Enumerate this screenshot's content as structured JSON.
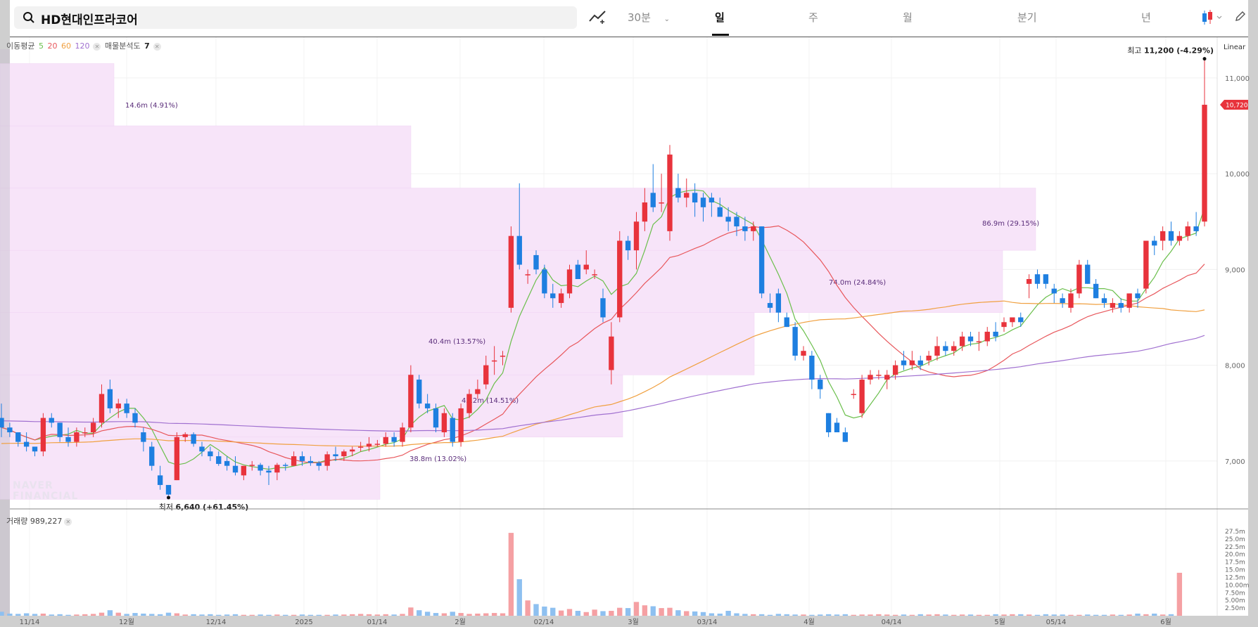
{
  "search": {
    "value": "HD현대인프라코어"
  },
  "toolbar": {
    "interval_label": "30분",
    "periods": [
      "일",
      "주",
      "월",
      "분기",
      "년"
    ],
    "active_period": "일"
  },
  "legend": {
    "ma_label": "이동평균",
    "ma_periods": [
      "5",
      "20",
      "60",
      "120"
    ],
    "ma_colors": [
      "#6abf4b",
      "#e8575c",
      "#f0a040",
      "#a070d0"
    ],
    "vp_label": "매물분석도",
    "vp_value": "7"
  },
  "scale_mode": "Linear",
  "high_marker": {
    "prefix": "최고",
    "value": "11,200",
    "change": "(-4.29%)"
  },
  "low_marker": {
    "prefix": "최저",
    "value": "6,640",
    "change": "(+61.45%)"
  },
  "current_price_label": "10,720",
  "volume_legend": {
    "label": "거래량",
    "value": "989,227"
  },
  "watermark": [
    "NAVER",
    "FINANCIAL"
  ],
  "colors": {
    "up": "#e8333c",
    "down": "#1e7fe0",
    "vp_fill": "#f7e4f9"
  },
  "chart_data": {
    "type": "candlestick",
    "y_axis": {
      "min": 6500,
      "max": 11300,
      "ticks": [
        7000,
        8000,
        9000,
        10000,
        11000
      ],
      "tick_labels": [
        "7,000",
        "8,000",
        "9,000",
        "10,000",
        "11,000"
      ]
    },
    "x_axis_labels": [
      "11/14",
      "12월",
      "12/14",
      "2025",
      "01/14",
      "2월",
      "02/14",
      "3월",
      "03/14",
      "4월",
      "04/14",
      "5월",
      "05/14",
      "6월"
    ],
    "volume_axis": {
      "tick_labels": [
        "27.5m",
        "25.0m",
        "22.5m",
        "20.0m",
        "17.5m",
        "15.0m",
        "12.5m",
        "10.00m",
        "7.50m",
        "5.00m",
        "2.50m"
      ]
    },
    "volume_profile": [
      {
        "low": 6600,
        "high": 7250,
        "label": "38.8m (13.02%)"
      },
      {
        "low": 7250,
        "high": 7900,
        "label": "43.2m (14.51%)"
      },
      {
        "low": 7900,
        "high": 8550,
        "label": "40.4m (13.57%)"
      },
      {
        "low": 8550,
        "high": 9200,
        "label": "74.0m (24.84%)"
      },
      {
        "low": 9200,
        "high": 9850,
        "label": "86.9m (29.15%)"
      },
      {
        "low": 9850,
        "high": 10500,
        "label": ""
      },
      {
        "low": 10500,
        "high": 11150,
        "label": "14.6m (4.91%)"
      }
    ],
    "candles": [
      [
        7450,
        7600,
        7250,
        7350
      ],
      [
        7350,
        7400,
        7250,
        7300
      ],
      [
        7300,
        7300,
        7150,
        7200
      ],
      [
        7200,
        7300,
        7100,
        7150
      ],
      [
        7150,
        7150,
        7050,
        7100
      ],
      [
        7100,
        7500,
        7050,
        7450
      ],
      [
        7450,
        7500,
        7350,
        7400
      ],
      [
        7400,
        7400,
        7200,
        7250
      ],
      [
        7250,
        7350,
        7150,
        7200
      ],
      [
        7200,
        7350,
        7150,
        7300
      ],
      [
        7300,
        7350,
        7250,
        7300
      ],
      [
        7300,
        7450,
        7250,
        7400
      ],
      [
        7400,
        7800,
        7350,
        7700
      ],
      [
        7750,
        7850,
        7500,
        7550
      ],
      [
        7550,
        7650,
        7450,
        7600
      ],
      [
        7600,
        7650,
        7450,
        7500
      ],
      [
        7500,
        7550,
        7350,
        7400
      ],
      [
        7300,
        7350,
        7100,
        7200
      ],
      [
        7150,
        7200,
        6900,
        6950
      ],
      [
        6850,
        6950,
        6700,
        6750
      ],
      [
        6750,
        6750,
        6640,
        6650
      ],
      [
        6800,
        7300,
        6800,
        7250
      ],
      [
        7250,
        7300,
        7200,
        7280
      ],
      [
        7280,
        7300,
        7150,
        7180
      ],
      [
        7150,
        7200,
        7050,
        7100
      ],
      [
        7100,
        7150,
        7000,
        7050
      ],
      [
        7050,
        7100,
        6950,
        6970
      ],
      [
        7000,
        7050,
        6900,
        6950
      ],
      [
        6950,
        7050,
        6850,
        6880
      ],
      [
        6850,
        6950,
        6800,
        6950
      ],
      [
        6950,
        7000,
        6900,
        6960
      ],
      [
        6960,
        6980,
        6850,
        6900
      ],
      [
        6900,
        6950,
        6750,
        6880
      ],
      [
        6880,
        6980,
        6800,
        6960
      ],
      [
        6960,
        6980,
        6900,
        6950
      ],
      [
        6950,
        7100,
        6950,
        7050
      ],
      [
        7050,
        7100,
        6950,
        7000
      ],
      [
        7000,
        7050,
        6950,
        6980
      ],
      [
        6980,
        7000,
        6900,
        6950
      ],
      [
        6950,
        7100,
        6900,
        7070
      ],
      [
        7070,
        7150,
        7000,
        7050
      ],
      [
        7050,
        7120,
        7000,
        7100
      ],
      [
        7100,
        7150,
        7050,
        7120
      ],
      [
        7150,
        7200,
        7100,
        7150
      ],
      [
        7150,
        7250,
        7100,
        7180
      ],
      [
        7180,
        7220,
        7150,
        7180
      ],
      [
        7180,
        7300,
        7150,
        7250
      ],
      [
        7250,
        7300,
        7150,
        7200
      ],
      [
        7200,
        7400,
        7150,
        7350
      ],
      [
        7350,
        8000,
        7300,
        7900
      ],
      [
        7850,
        7900,
        7550,
        7600
      ],
      [
        7600,
        7700,
        7500,
        7550
      ],
      [
        7550,
        7600,
        7300,
        7350
      ],
      [
        7300,
        7550,
        7250,
        7500
      ],
      [
        7450,
        7500,
        7150,
        7200
      ],
      [
        7200,
        7600,
        7150,
        7550
      ],
      [
        7500,
        7750,
        7450,
        7700
      ],
      [
        7700,
        7850,
        7650,
        7750
      ],
      [
        7800,
        8100,
        7750,
        8000
      ],
      [
        8050,
        8200,
        7900,
        8050
      ],
      [
        8100,
        8150,
        8000,
        8100
      ],
      [
        8600,
        9450,
        8550,
        9350
      ],
      [
        9350,
        9900,
        9000,
        9050
      ],
      [
        8950,
        9000,
        8850,
        8950
      ],
      [
        9150,
        9200,
        8950,
        9000
      ],
      [
        9000,
        9050,
        8700,
        8750
      ],
      [
        8750,
        8850,
        8600,
        8700
      ],
      [
        8650,
        8800,
        8600,
        8750
      ],
      [
        8750,
        9050,
        8700,
        9000
      ],
      [
        9050,
        9100,
        8900,
        8900
      ],
      [
        9000,
        9200,
        8950,
        9050
      ],
      [
        8950,
        9000,
        8900,
        8950
      ],
      [
        8700,
        8800,
        8450,
        8500
      ],
      [
        7950,
        8450,
        7800,
        8300
      ],
      [
        8500,
        9400,
        8450,
        9300
      ],
      [
        9300,
        9350,
        9100,
        9200
      ],
      [
        9200,
        9600,
        9000,
        9500
      ],
      [
        9500,
        9850,
        9400,
        9700
      ],
      [
        9800,
        10100,
        9600,
        9650
      ],
      [
        9700,
        10000,
        9600,
        9700
      ],
      [
        9400,
        10300,
        9300,
        10200
      ],
      [
        9850,
        10000,
        9700,
        9750
      ],
      [
        9750,
        9950,
        9650,
        9800
      ],
      [
        9800,
        9900,
        9550,
        9700
      ],
      [
        9750,
        9800,
        9500,
        9650
      ],
      [
        9750,
        9800,
        9550,
        9700
      ],
      [
        9650,
        9750,
        9550,
        9550
      ],
      [
        9550,
        9650,
        9400,
        9500
      ],
      [
        9550,
        9600,
        9350,
        9450
      ],
      [
        9450,
        9550,
        9300,
        9400
      ],
      [
        9400,
        9500,
        9300,
        9450
      ],
      [
        9450,
        9450,
        8700,
        8750
      ],
      [
        8650,
        8750,
        8550,
        8600
      ],
      [
        8750,
        8800,
        8450,
        8550
      ],
      [
        8500,
        8550,
        8400,
        8400
      ],
      [
        8400,
        8450,
        8050,
        8100
      ],
      [
        8100,
        8200,
        8050,
        8150
      ],
      [
        8100,
        8150,
        7750,
        7850
      ],
      [
        7850,
        7900,
        7650,
        7750
      ],
      [
        7500,
        7500,
        7250,
        7300
      ],
      [
        7400,
        7450,
        7300,
        7300
      ],
      [
        7300,
        7350,
        7200,
        7200
      ],
      [
        7700,
        7750,
        7650,
        7700
      ],
      [
        7500,
        7900,
        7450,
        7850
      ],
      [
        7850,
        7950,
        7800,
        7900
      ],
      [
        7900,
        7950,
        7850,
        7900
      ],
      [
        7850,
        7950,
        7750,
        7900
      ],
      [
        7900,
        8050,
        7850,
        8000
      ],
      [
        8050,
        8150,
        7950,
        8000
      ],
      [
        8000,
        8150,
        7950,
        8050
      ],
      [
        8050,
        8100,
        7950,
        8000
      ],
      [
        8050,
        8150,
        8000,
        8100
      ],
      [
        8100,
        8300,
        8050,
        8200
      ],
      [
        8200,
        8250,
        8100,
        8150
      ],
      [
        8150,
        8250,
        8100,
        8200
      ],
      [
        8200,
        8350,
        8150,
        8300
      ],
      [
        8300,
        8350,
        8200,
        8250
      ],
      [
        8250,
        8350,
        8150,
        8250
      ],
      [
        8250,
        8400,
        8200,
        8350
      ],
      [
        8350,
        8450,
        8250,
        8300
      ],
      [
        8400,
        8500,
        8350,
        8450
      ],
      [
        8450,
        8500,
        8400,
        8500
      ],
      [
        8500,
        8550,
        8400,
        8450
      ],
      [
        8850,
        8950,
        8700,
        8900
      ],
      [
        8950,
        9000,
        8800,
        8850
      ],
      [
        8950,
        8950,
        8800,
        8850
      ],
      [
        8800,
        8850,
        8650,
        8750
      ],
      [
        8700,
        8750,
        8600,
        8650
      ],
      [
        8600,
        8800,
        8550,
        8750
      ],
      [
        8750,
        9100,
        8700,
        9050
      ],
      [
        9050,
        9100,
        8850,
        8850
      ],
      [
        8850,
        8900,
        8700,
        8700
      ],
      [
        8700,
        8750,
        8600,
        8650
      ],
      [
        8600,
        8700,
        8550,
        8650
      ],
      [
        8650,
        8700,
        8550,
        8600
      ],
      [
        8600,
        8750,
        8550,
        8750
      ],
      [
        8750,
        8800,
        8600,
        8700
      ],
      [
        8800,
        9300,
        8750,
        9300
      ],
      [
        9300,
        9350,
        9150,
        9250
      ],
      [
        9300,
        9450,
        9200,
        9400
      ],
      [
        9400,
        9500,
        9250,
        9300
      ],
      [
        9300,
        9400,
        9250,
        9350
      ],
      [
        9350,
        9500,
        9300,
        9450
      ],
      [
        9450,
        9600,
        9350,
        9400
      ],
      [
        9500,
        11200,
        9450,
        10720
      ]
    ],
    "volumes": [
      1.3,
      0.7,
      0.6,
      0.8,
      0.6,
      0.7,
      0.4,
      0.5,
      0.3,
      0.4,
      0.5,
      0.6,
      1.0,
      1.8,
      1.0,
      0.6,
      0.9,
      0.7,
      0.6,
      0.5,
      1.0,
      0.8,
      0.4,
      0.5,
      0.4,
      0.5,
      0.3,
      0.4,
      0.5,
      0.3,
      0.3,
      0.4,
      0.3,
      0.4,
      0.3,
      0.3,
      0.4,
      0.3,
      0.3,
      0.3,
      0.4,
      0.4,
      0.5,
      0.6,
      0.5,
      0.4,
      0.5,
      0.4,
      0.6,
      2.7,
      1.8,
      1.3,
      0.9,
      0.8,
      1.3,
      0.9,
      0.6,
      0.7,
      0.8,
      0.9,
      0.8,
      27.0,
      11.9,
      5.0,
      3.8,
      3.0,
      2.6,
      1.7,
      2.2,
      1.6,
      1.2,
      2.0,
      1.5,
      1.6,
      2.6,
      2.5,
      4.5,
      3.4,
      3.1,
      2.5,
      2.6,
      1.8,
      1.5,
      1.4,
      1.2,
      0.8,
      0.7,
      1.6,
      0.8,
      0.6,
      0.5,
      0.5,
      0.3,
      0.6,
      0.5,
      0.4,
      0.4,
      0.3,
      0.4,
      0.5,
      0.4,
      0.5,
      0.3,
      0.4,
      0.4,
      0.5,
      0.4,
      0.3,
      0.4,
      0.3,
      0.5,
      0.4,
      0.5,
      0.4,
      0.3,
      0.4,
      0.4,
      0.3,
      0.3,
      0.5,
      0.4,
      0.5,
      0.5,
      0.4,
      0.3,
      0.5,
      0.4,
      0.4,
      0.3,
      0.3,
      0.4,
      0.3,
      0.3,
      0.4,
      0.3,
      0.4,
      0.7,
      0.5,
      0.7,
      0.4,
      0.5,
      14.0
    ]
  }
}
